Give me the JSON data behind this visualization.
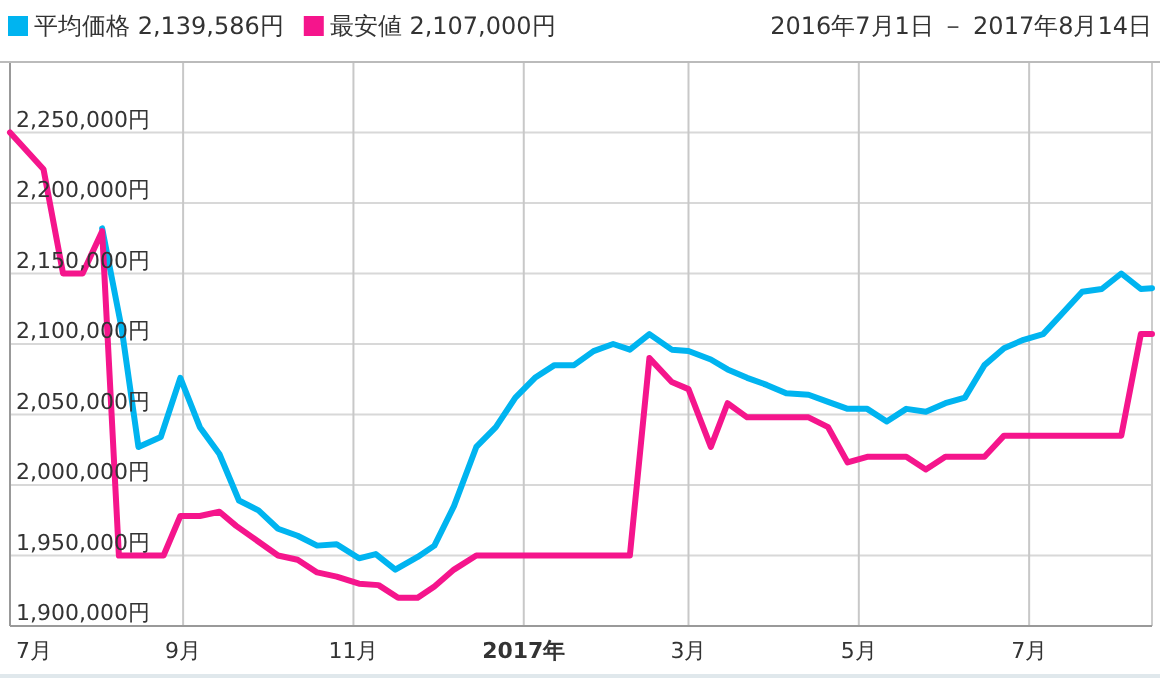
{
  "chart_data": {
    "type": "line",
    "subtitle": "2016年7月1日 － 2017年8月14日",
    "xlim": [
      "2016-07-01",
      "2017-08-14"
    ],
    "ylim": [
      1900000,
      2300000
    ],
    "xticks": [
      {
        "value": "2016-07-01",
        "label": "7月"
      },
      {
        "value": "2016-09-01",
        "label": "9月"
      },
      {
        "value": "2016-11-01",
        "label": "11月"
      },
      {
        "value": "2017-01-01",
        "label": "2017年"
      },
      {
        "value": "2017-03-01",
        "label": "3月"
      },
      {
        "value": "2017-05-01",
        "label": "5月"
      },
      {
        "value": "2017-07-01",
        "label": "7月"
      }
    ],
    "yticks": [
      {
        "value": 1900000,
        "label": "1,900,000円"
      },
      {
        "value": 1950000,
        "label": "1,950,000円"
      },
      {
        "value": 2000000,
        "label": "2,000,000円"
      },
      {
        "value": 2050000,
        "label": "2,050,000円"
      },
      {
        "value": 2100000,
        "label": "2,100,000円"
      },
      {
        "value": 2150000,
        "label": "2,150,000円"
      },
      {
        "value": 2200000,
        "label": "2,200,000円"
      },
      {
        "value": 2250000,
        "label": "2,250,000円"
      }
    ],
    "grid": true,
    "legend": "top left",
    "marker": "none",
    "line_style": "solid",
    "series": [
      {
        "name": "平均価格 2,139,586円",
        "color": "#00b4f0",
        "x": [
          "2016-08-03",
          "2016-08-10",
          "2016-08-16",
          "2016-08-24",
          "2016-08-31",
          "2016-09-07",
          "2016-09-14",
          "2016-09-21",
          "2016-09-28",
          "2016-10-05",
          "2016-10-12",
          "2016-10-19",
          "2016-10-26",
          "2016-11-03",
          "2016-11-09",
          "2016-11-16",
          "2016-11-24",
          "2016-11-30",
          "2016-12-07",
          "2016-12-15",
          "2016-12-22",
          "2016-12-29",
          "2017-01-05",
          "2017-01-12",
          "2017-01-19",
          "2017-01-26",
          "2017-02-02",
          "2017-02-08",
          "2017-02-15",
          "2017-02-23",
          "2017-03-01",
          "2017-03-09",
          "2017-03-15",
          "2017-03-22",
          "2017-03-29",
          "2017-04-05",
          "2017-04-13",
          "2017-04-20",
          "2017-04-27",
          "2017-05-04",
          "2017-05-11",
          "2017-05-18",
          "2017-05-25",
          "2017-06-01",
          "2017-06-08",
          "2017-06-15",
          "2017-06-22",
          "2017-06-29",
          "2017-07-06",
          "2017-07-13",
          "2017-07-20",
          "2017-07-27",
          "2017-08-03",
          "2017-08-10",
          "2017-08-14"
        ],
        "values": [
          2182000,
          2111000,
          2027000,
          2034000,
          2076000,
          2041000,
          2022000,
          1989000,
          1982000,
          1969000,
          1964000,
          1957000,
          1958000,
          1948000,
          1951000,
          1940000,
          1949000,
          1957000,
          1985000,
          2027000,
          2041000,
          2062000,
          2076000,
          2085000,
          2085000,
          2095000,
          2100000,
          2096000,
          2107000,
          2096000,
          2095000,
          2089000,
          2082000,
          2076000,
          2071000,
          2065000,
          2064000,
          2059000,
          2054000,
          2054000,
          2045000,
          2054000,
          2052000,
          2058000,
          2062000,
          2085000,
          2097000,
          2103000,
          2107000,
          2122000,
          2137000,
          2139000,
          2150000,
          2139000,
          2139586
        ]
      },
      {
        "name": "最安値 2,107,000円",
        "color": "#f5158c",
        "x": [
          "2016-07-01",
          "2016-07-13",
          "2016-07-20",
          "2016-07-27",
          "2016-08-03",
          "2016-08-09",
          "2016-08-25",
          "2016-08-31",
          "2016-09-07",
          "2016-09-14",
          "2016-09-20",
          "2016-10-05",
          "2016-10-12",
          "2016-10-19",
          "2016-10-26",
          "2016-11-03",
          "2016-11-10",
          "2016-11-17",
          "2016-11-24",
          "2016-11-30",
          "2016-12-07",
          "2016-12-15",
          "2017-02-08",
          "2017-02-15",
          "2017-02-23",
          "2017-03-01",
          "2017-03-09",
          "2017-03-15",
          "2017-03-22",
          "2017-04-13",
          "2017-04-20",
          "2017-04-27",
          "2017-05-04",
          "2017-05-18",
          "2017-05-25",
          "2017-06-01",
          "2017-06-15",
          "2017-06-22",
          "2017-08-03",
          "2017-08-10",
          "2017-08-14"
        ],
        "values": [
          2250000,
          2224000,
          2150000,
          2150000,
          2180000,
          1950000,
          1950000,
          1978000,
          1978000,
          1981000,
          1971000,
          1950000,
          1947000,
          1938000,
          1935000,
          1930000,
          1929000,
          1920000,
          1920000,
          1928000,
          1940000,
          1950000,
          1950000,
          2090000,
          2073000,
          2068000,
          2027000,
          2058000,
          2048000,
          2048000,
          2041000,
          2016000,
          2020000,
          2020000,
          2011000,
          2020000,
          2020000,
          2035000,
          2035000,
          2107000,
          2107000
        ]
      }
    ]
  }
}
